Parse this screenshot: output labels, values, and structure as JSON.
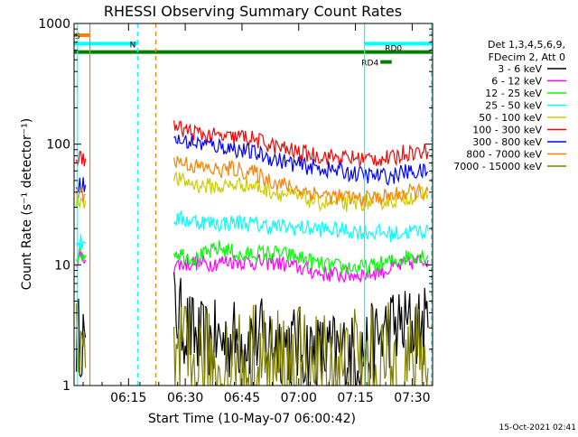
{
  "chart_data": {
    "type": "line",
    "title": "RHESSI Observing Summary Count Rates",
    "xlabel": "Start Time (10-May-07 06:00:42)",
    "ylabel": "Count Rate (s⁻¹ detector⁻¹)",
    "y_scale": "log",
    "xlim": [
      6.01,
      7.59
    ],
    "ylim": [
      1,
      1000
    ],
    "x_ticks": [
      "06:15",
      "06:30",
      "06:45",
      "07:00",
      "07:15",
      "07:30"
    ],
    "x_tick_values": [
      6.25,
      6.5,
      6.75,
      7.0,
      7.25,
      7.5
    ],
    "y_ticks": [
      "1",
      "10",
      "100",
      "1000"
    ],
    "y_tick_values": [
      1,
      10,
      100,
      1000
    ],
    "legend_title": [
      "Det 1,3,4,5,6,9,",
      "FDecim 2, Att 0"
    ],
    "legend_position": "right",
    "timestamp": "15-Oct-2021 02:41",
    "series": [
      {
        "name": "3 - 6 keV",
        "color": "#000000",
        "x": [
          6.02,
          6.04,
          6.06,
          6.45,
          6.49,
          6.52,
          6.56,
          6.62,
          6.7,
          6.8,
          6.9,
          7.0,
          7.1,
          7.2,
          7.24,
          7.3,
          7.4,
          7.5,
          7.57
        ],
        "values": [
          2.5,
          2.6,
          2.5,
          4.5,
          3.3,
          2.8,
          2.3,
          2.3,
          2.4,
          2.5,
          2.3,
          2.1,
          1.8,
          1.9,
          1.8,
          2.0,
          3.0,
          3.1,
          3.0
        ]
      },
      {
        "name": "6 - 12 keV",
        "color": "#ff00ff",
        "x": [
          6.02,
          6.04,
          6.06,
          6.45,
          6.5,
          6.55,
          6.6,
          6.7,
          6.8,
          6.9,
          7.0,
          7.1,
          7.2,
          7.3,
          7.4,
          7.5,
          7.57
        ],
        "values": [
          11,
          11.5,
          11,
          10,
          10.2,
          10.5,
          10.2,
          10.8,
          10.5,
          10.5,
          9.5,
          8.5,
          8.2,
          8.4,
          9.2,
          10.5,
          11
        ]
      },
      {
        "name": "12 - 25 keV",
        "color": "#00ff00",
        "x": [
          6.02,
          6.04,
          6.06,
          6.45,
          6.5,
          6.55,
          6.6,
          6.65,
          6.7,
          6.75,
          6.8,
          6.9,
          7.0,
          7.1,
          7.2,
          7.3,
          7.4,
          7.5,
          7.57
        ],
        "values": [
          12,
          12.5,
          12,
          13,
          12,
          11.2,
          12.5,
          13.8,
          13,
          11.5,
          12.5,
          12.5,
          11.5,
          10,
          9.5,
          9.5,
          10.5,
          12,
          12
        ]
      },
      {
        "name": "25 - 50 keV",
        "color": "#00ffff",
        "x": [
          6.02,
          6.04,
          6.06,
          6.45,
          6.55,
          6.65,
          6.75,
          6.85,
          6.95,
          7.05,
          7.15,
          7.25,
          7.35,
          7.42,
          7.5,
          7.57
        ],
        "values": [
          15,
          15.5,
          15,
          24,
          23,
          22,
          22.5,
          21,
          20.5,
          20,
          19.5,
          19,
          18.5,
          18,
          19,
          19
        ]
      },
      {
        "name": "50 - 100 keV",
        "color": "#cccc00",
        "x": [
          6.02,
          6.04,
          6.06,
          6.45,
          6.48,
          6.55,
          6.65,
          6.75,
          6.8,
          6.9,
          7.0,
          7.1,
          7.2,
          7.3,
          7.4,
          7.5,
          7.57
        ],
        "values": [
          34,
          35,
          34,
          52,
          50,
          46,
          44,
          47,
          45,
          40,
          36,
          33,
          32,
          33,
          34,
          37,
          38
        ]
      },
      {
        "name": "100 - 300 keV",
        "color": "#ff0000",
        "x": [
          6.02,
          6.04,
          6.06,
          6.45,
          6.5,
          6.6,
          6.7,
          6.75,
          6.8,
          6.9,
          7.0,
          7.1,
          7.2,
          7.3,
          7.42,
          7.46,
          7.5,
          7.57
        ],
        "values": [
          75,
          77,
          76,
          140,
          130,
          118,
          112,
          116,
          110,
          95,
          85,
          80,
          77,
          76,
          76,
          85,
          86,
          87
        ]
      },
      {
        "name": "300 - 800 keV",
        "color": "#0000ff",
        "x": [
          6.02,
          6.04,
          6.06,
          6.45,
          6.55,
          6.65,
          6.7,
          6.8,
          6.9,
          7.0,
          7.1,
          7.2,
          7.3,
          7.42,
          7.44,
          7.5,
          7.57
        ],
        "values": [
          46,
          47,
          46,
          108,
          102,
          96,
          93,
          85,
          75,
          67,
          63,
          59,
          55,
          54,
          58,
          59,
          59
        ]
      },
      {
        "name": "800 - 7000 keV",
        "color": "#ff8000",
        "x": [
          6.02,
          6.04,
          6.06,
          6.45,
          6.5,
          6.55,
          6.65,
          6.7,
          6.8,
          6.9,
          7.0,
          7.1,
          7.2,
          7.3,
          7.4,
          7.5,
          7.57
        ],
        "values": [
          38,
          39,
          38,
          74,
          70,
          65,
          60,
          63,
          58,
          48,
          42,
          38,
          36,
          35,
          37,
          40,
          41
        ]
      },
      {
        "name": "7000 - 15000 keV",
        "color": "#808000",
        "x": [
          6.02,
          6.04,
          6.06,
          6.45,
          6.6,
          6.8,
          7.0,
          7.2,
          7.4,
          7.57
        ],
        "values": [
          1.4,
          1.3,
          1.4,
          1.4,
          1.3,
          1.4,
          1.3,
          1.3,
          1.4,
          1.4
        ]
      }
    ],
    "state_bars": [
      {
        "label": "S",
        "color": "#ff8000",
        "x": [
          6.01,
          6.08
        ],
        "y": 800
      },
      {
        "label": "N",
        "color": "#00ffff",
        "x": [
          6.01,
          6.29
        ],
        "y": 680
      },
      {
        "label": "",
        "color": "#00ffff",
        "x": [
          7.29,
          7.59
        ],
        "y": 680
      },
      {
        "label": "RD0",
        "color": "#008000",
        "x": [
          6.01,
          7.59
        ],
        "y": 580
      },
      {
        "label": "RD4",
        "color": "#008000",
        "x": [
          7.36,
          7.41
        ],
        "y": 480
      }
    ],
    "vertical_lines": [
      {
        "x": 6.025,
        "color": "#00ffff",
        "style": "solid"
      },
      {
        "x": 6.08,
        "color": "#ff8000",
        "style": "solid"
      },
      {
        "x": 6.29,
        "color": "#00ffff",
        "style": "dashed"
      },
      {
        "x": 6.37,
        "color": "#ff8000",
        "style": "dashed"
      },
      {
        "x": 7.29,
        "color": "#00ffff",
        "style": "solid"
      },
      {
        "x": 7.585,
        "color": "#00ffff",
        "style": "dashed"
      }
    ]
  }
}
